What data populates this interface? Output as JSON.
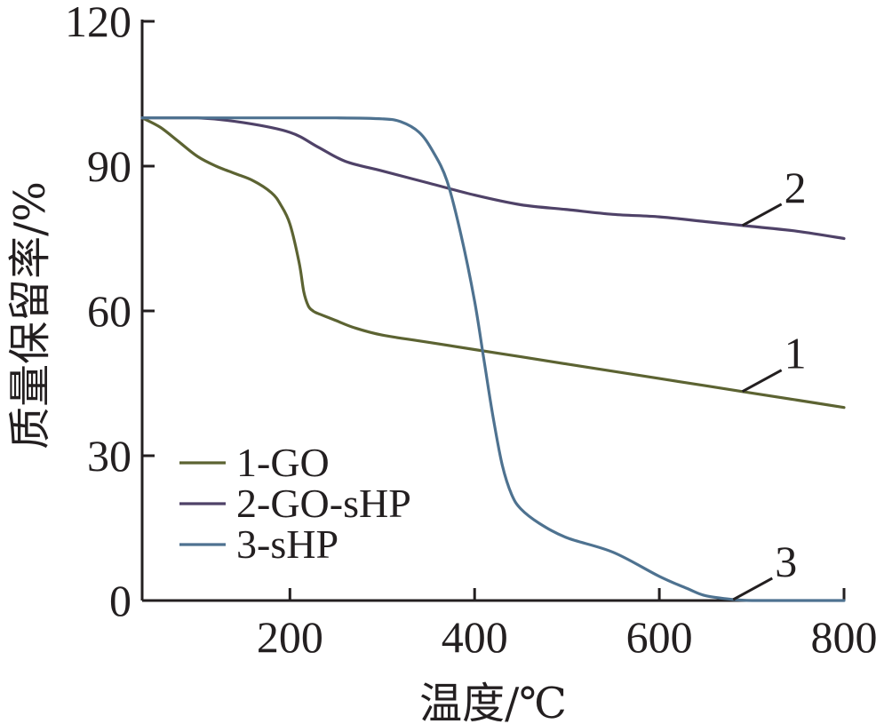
{
  "chart_data": {
    "type": "line",
    "xlabel": "温度/℃",
    "ylabel": "质量保留率/%",
    "xlim": [
      40,
      800
    ],
    "ylim": [
      0,
      120
    ],
    "xticks": [
      200,
      400,
      600,
      800
    ],
    "yticks": [
      0,
      30,
      60,
      90,
      120
    ],
    "grid": false,
    "legend_position": "bottom-left",
    "series": [
      {
        "name": "1-GO",
        "callout": "1",
        "callout_at": 690,
        "color": "#5c6332",
        "x": [
          40,
          60,
          80,
          100,
          120,
          140,
          160,
          180,
          190,
          200,
          210,
          215,
          220,
          225,
          230,
          250,
          270,
          300,
          350,
          400,
          450,
          500,
          550,
          600,
          650,
          700,
          750,
          800
        ],
        "y": [
          100,
          98,
          95,
          92,
          90,
          88.5,
          87,
          84.5,
          82,
          78,
          70,
          64,
          61,
          60,
          59.5,
          58,
          56.5,
          55,
          53.5,
          52,
          50.5,
          49,
          47.5,
          46,
          44.5,
          43,
          41.5,
          40
        ]
      },
      {
        "name": "2-GO-sHP",
        "callout": "2",
        "callout_at": 690,
        "color": "#4f4268",
        "x": [
          40,
          100,
          150,
          200,
          230,
          260,
          300,
          350,
          400,
          450,
          500,
          550,
          600,
          650,
          700,
          750,
          800
        ],
        "y": [
          100,
          100,
          99,
          97,
          94,
          91,
          89,
          86.5,
          84,
          82,
          81,
          80,
          79.5,
          78.5,
          77.5,
          76.5,
          75
        ]
      },
      {
        "name": "3-sHP",
        "callout": "3",
        "callout_at": 680,
        "color": "#4e7290",
        "x": [
          40,
          100,
          150,
          200,
          250,
          300,
          320,
          340,
          355,
          370,
          385,
          400,
          410,
          420,
          430,
          440,
          450,
          470,
          500,
          550,
          600,
          630,
          650,
          680,
          700,
          750,
          800
        ],
        "y": [
          100,
          100,
          100,
          100,
          100,
          99.8,
          99.2,
          97,
          93,
          87,
          76,
          62,
          50,
          38,
          28,
          22,
          19,
          16,
          13,
          10,
          5,
          2.5,
          1,
          0.2,
          0,
          0,
          0
        ]
      }
    ]
  }
}
